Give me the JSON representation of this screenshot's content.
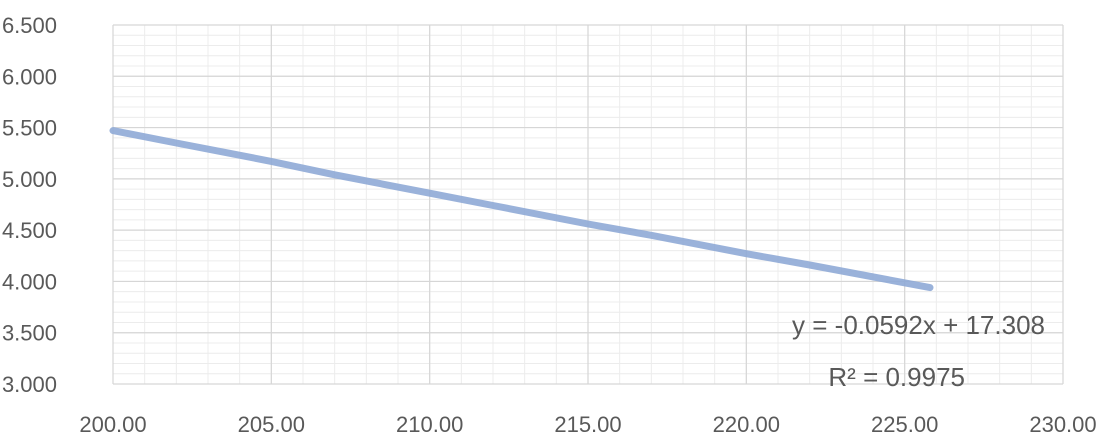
{
  "chart_data": {
    "type": "line",
    "title": "",
    "xlabel": "",
    "ylabel": "",
    "xlim": [
      200,
      230
    ],
    "ylim": [
      3.0,
      6.5
    ],
    "x_ticks": [
      {
        "value": 200,
        "label": "200.00"
      },
      {
        "value": 205,
        "label": "205.00"
      },
      {
        "value": 210,
        "label": "210.00"
      },
      {
        "value": 215,
        "label": "215.00"
      },
      {
        "value": 220,
        "label": "220.00"
      },
      {
        "value": 225,
        "label": "225.00"
      },
      {
        "value": 230,
        "label": "230.00"
      }
    ],
    "y_ticks": [
      {
        "value": 3.0,
        "label": "3.000"
      },
      {
        "value": 3.5,
        "label": "3.500"
      },
      {
        "value": 4.0,
        "label": "4.000"
      },
      {
        "value": 4.5,
        "label": "4.500"
      },
      {
        "value": 5.0,
        "label": "5.000"
      },
      {
        "value": 5.5,
        "label": "5.500"
      },
      {
        "value": 6.0,
        "label": "6.000"
      },
      {
        "value": 6.5,
        "label": "6.500"
      }
    ],
    "grid": true,
    "minor_grid": true,
    "series": [
      {
        "color": "#8faad6",
        "x": [
          200,
          202,
          205,
          207,
          210,
          212,
          215,
          217,
          220,
          222,
          225.8
        ],
        "y": [
          5.47,
          5.35,
          5.17,
          5.04,
          4.86,
          4.74,
          4.56,
          4.45,
          4.27,
          4.16,
          3.94
        ]
      }
    ],
    "annotations": [
      {
        "text": "y = -0.0592x + 17.308"
      },
      {
        "text": "R² = 0.9975"
      }
    ]
  }
}
